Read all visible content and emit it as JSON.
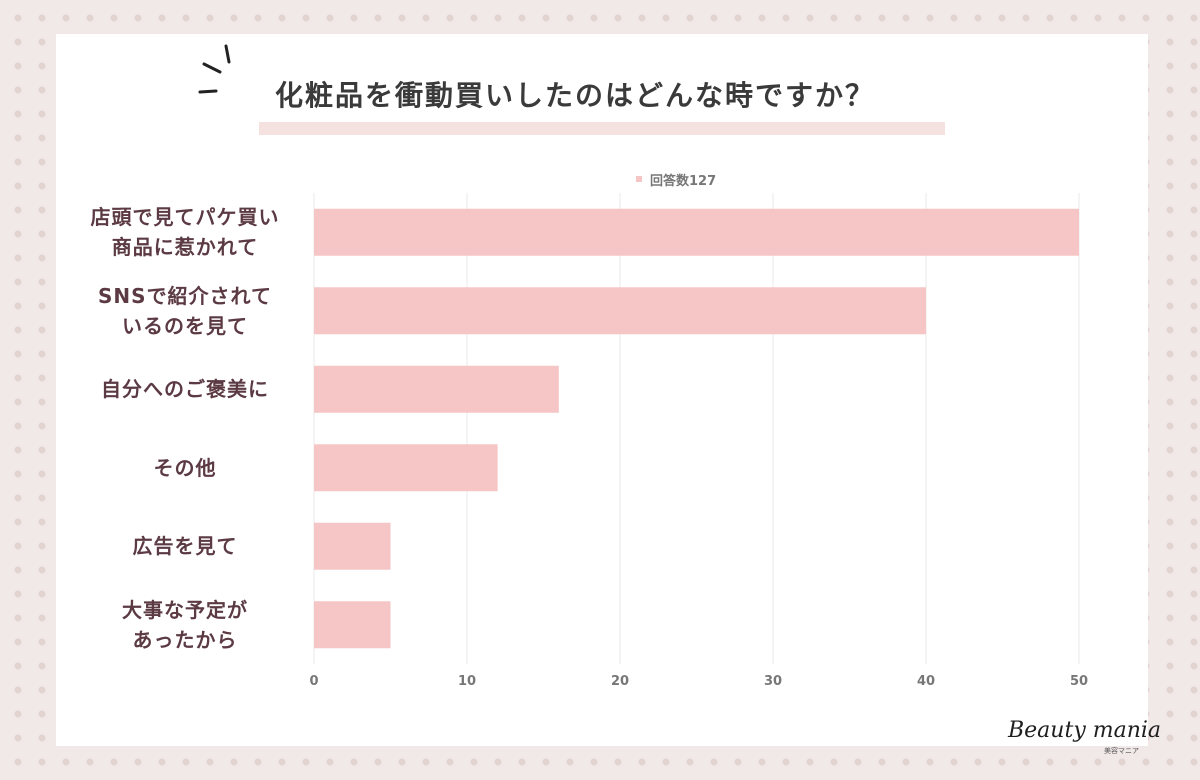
{
  "title": "化粧品を衝動買いしたのはどんな時ですか？",
  "legend": {
    "label": "回答数127",
    "color": "#f6c5c6"
  },
  "brand": {
    "name": "Beauty mania",
    "sub": "美容マニア"
  },
  "chart_data": {
    "type": "bar",
    "orientation": "horizontal",
    "categories": [
      [
        "店頭で見てパケ買い",
        "商品に惹かれて"
      ],
      [
        "SNSで紹介されて",
        "いるのを見て"
      ],
      [
        "自分へのご褒美に"
      ],
      [
        "その他"
      ],
      [
        "広告を見て"
      ],
      [
        "大事な予定が",
        "あったから"
      ]
    ],
    "series": [
      {
        "name": "回答数127",
        "values": [
          50,
          40,
          16,
          12,
          5,
          5
        ],
        "color": "#f6c5c6"
      }
    ],
    "xlim": [
      0,
      50
    ],
    "xticks": [
      0,
      10,
      20,
      30,
      40,
      50
    ],
    "grid": true,
    "legend_position": "top-center"
  }
}
